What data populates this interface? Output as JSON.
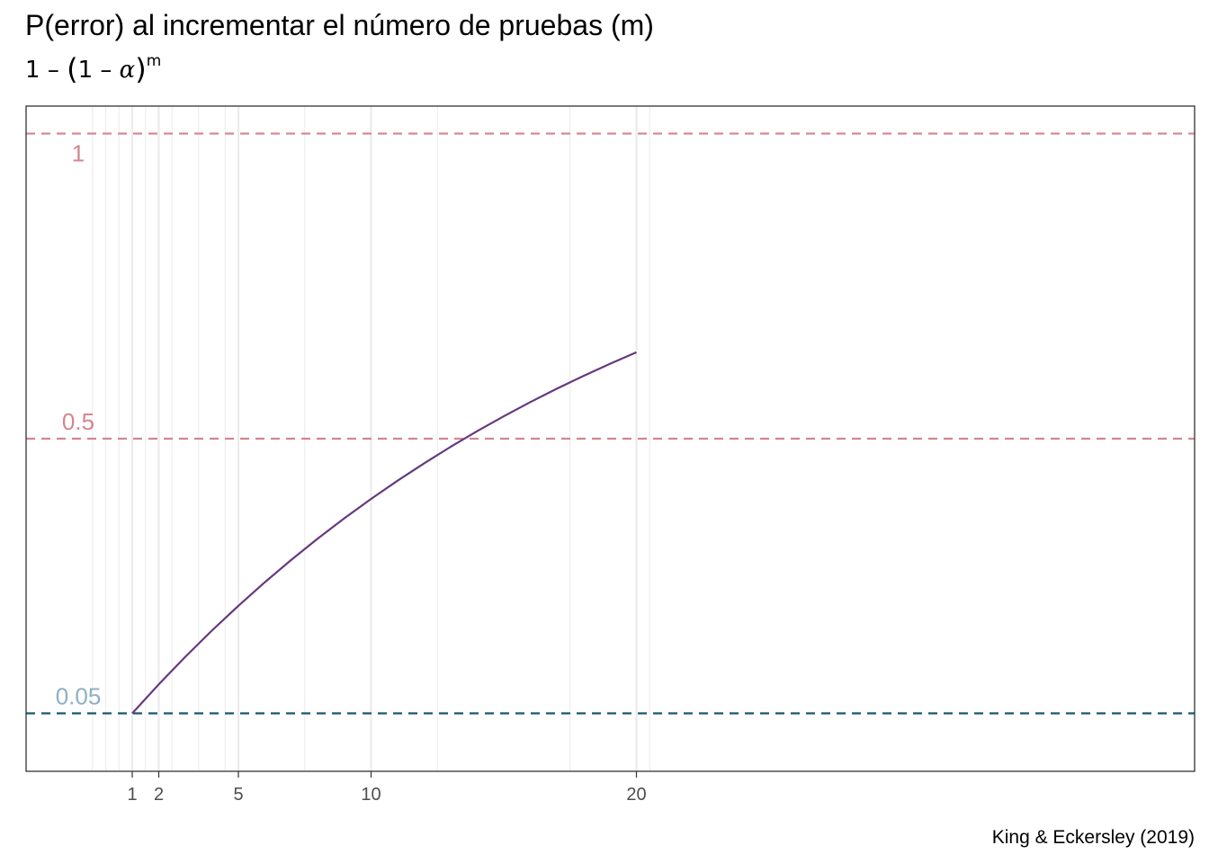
{
  "title": "P(error) al incrementar el número de pruebas (m)",
  "subtitle": {
    "one": "1",
    "minus": "–",
    "inner_one": "1",
    "alpha": "α",
    "exponent": "m"
  },
  "caption": "King & Eckersley (2019)",
  "colors": {
    "curve": "#66397f",
    "ref_high": "#d4858f",
    "ref_low": "#19566f",
    "ref_low_label": "#8fb0c2",
    "grid": "#ebebeb",
    "panel_border": "#333333"
  },
  "chart_data": {
    "type": "line",
    "title": "P(error) al incrementar el número de pruebas (m)",
    "subtitle": "1 – (1 – α)^m",
    "xlabel": "",
    "ylabel": "",
    "xlim": [
      -1,
      21
    ],
    "ylim": [
      -0.045,
      1.045
    ],
    "x_ticks": [
      1,
      2,
      5,
      10,
      20
    ],
    "x_minor_gridlines": [
      -0.5,
      0,
      0.5,
      1.5,
      2.5,
      3.5,
      4.5,
      7.5,
      12.5,
      17.5,
      20.5
    ],
    "series": [
      {
        "alpha": 0.05,
        "x": [
          1,
          2,
          3,
          4,
          5,
          6,
          7,
          8,
          9,
          10,
          11,
          12,
          13,
          14,
          15,
          16,
          17,
          18,
          19,
          20
        ],
        "y": [
          0.05,
          0.0975,
          0.1426,
          0.1855,
          0.2262,
          0.2649,
          0.3017,
          0.3366,
          0.3698,
          0.4013,
          0.4312,
          0.4596,
          0.4867,
          0.5123,
          0.5367,
          0.5599,
          0.5819,
          0.6028,
          0.6226,
          0.6415
        ]
      }
    ],
    "reference_lines": [
      {
        "y": 1,
        "label": "1",
        "style": "dashed",
        "color": "#d4858f"
      },
      {
        "y": 0.5,
        "label": "0.5",
        "style": "dashed",
        "color": "#d4858f"
      },
      {
        "y": 0.05,
        "label": "0.05",
        "style": "dashed",
        "color": "#19566f",
        "label_color": "#8fb0c2"
      }
    ],
    "grid": true,
    "legend": "none"
  }
}
